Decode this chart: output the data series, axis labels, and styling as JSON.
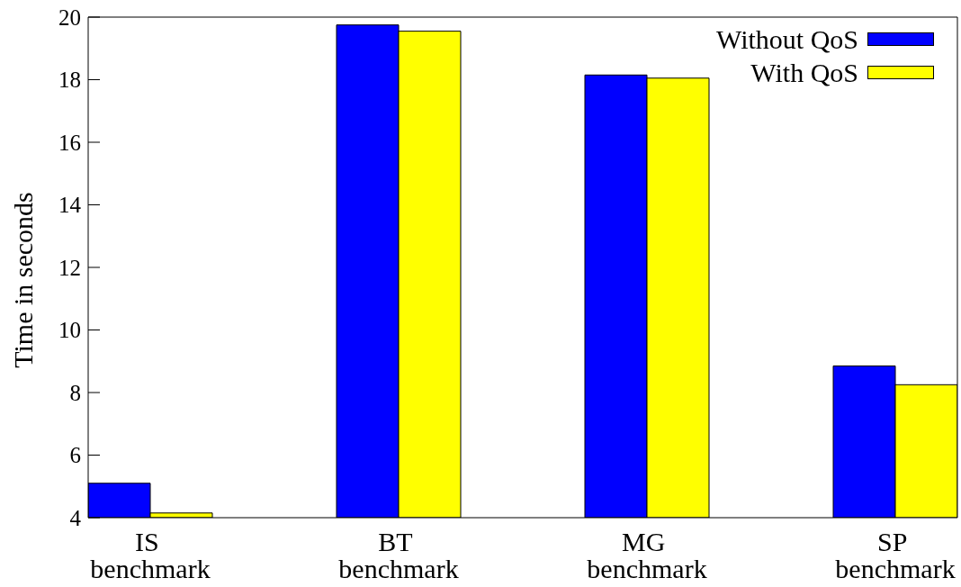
{
  "chart_data": {
    "type": "bar",
    "ylabel": "Time in seconds",
    "categories": [
      "IS benchmark",
      "BT benchmark",
      "MG benchmark",
      "SP benchmark"
    ],
    "series": [
      {
        "name": "Without QoS",
        "color": "#0000ff",
        "values": [
          5.1,
          19.75,
          18.15,
          8.85
        ]
      },
      {
        "name": "With QoS",
        "color": "#ffff00",
        "values": [
          4.15,
          19.55,
          18.05,
          8.25
        ]
      }
    ],
    "ylim": [
      4,
      20
    ],
    "yticks": [
      4,
      6,
      8,
      10,
      12,
      14,
      16,
      18,
      20
    ],
    "legend": "top right"
  }
}
